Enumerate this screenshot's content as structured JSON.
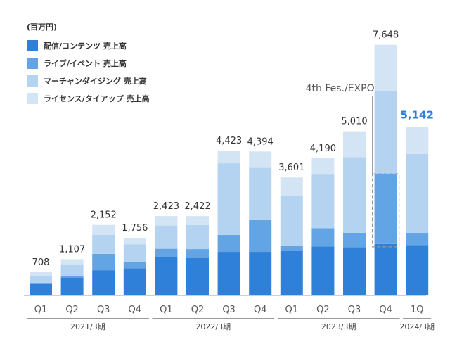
{
  "chart_data": {
    "type": "bar",
    "stacked": true,
    "unit_label": "(百万円)",
    "categories": [
      "Q1",
      "Q2",
      "Q3",
      "Q4",
      "Q1",
      "Q2",
      "Q3",
      "Q4",
      "Q1",
      "Q2",
      "Q3",
      "Q4",
      "1Q"
    ],
    "groups": [
      {
        "label": "2021/3期",
        "from": 0,
        "to": 3
      },
      {
        "label": "2022/3期",
        "from": 4,
        "to": 7
      },
      {
        "label": "2023/3期",
        "from": 8,
        "to": 11
      },
      {
        "label": "2024/3期",
        "from": 12,
        "to": 12
      }
    ],
    "series": [
      {
        "name": "配信/コンテンツ 売上高",
        "color": "#2f80d8",
        "values": [
          370,
          545,
          770,
          830,
          1160,
          1145,
          1330,
          1330,
          1360,
          1495,
          1475,
          1570,
          1540
        ]
      },
      {
        "name": "ライブ/イベント 売上高",
        "color": "#63a4e4",
        "values": [
          20,
          40,
          500,
          200,
          265,
          270,
          520,
          970,
          150,
          560,
          440,
          2140,
          370
        ]
      },
      {
        "name": "マーチャンダイジング 売上高",
        "color": "#b4d3f0",
        "values": [
          200,
          342,
          582,
          526,
          708,
          737,
          2183,
          1594,
          1531,
          1635,
          2305,
          2523,
          2405
        ]
      },
      {
        "name": "ライセンス/タイアップ 売上高",
        "color": "#d3e4f5",
        "values": [
          118,
          180,
          300,
          200,
          290,
          270,
          390,
          500,
          560,
          500,
          790,
          1415,
          827
        ]
      }
    ],
    "totals": [
      "708",
      "1,107",
      "2,152",
      "1,756",
      "2,423",
      "2,422",
      "4,423",
      "4,394",
      "3,601",
      "4,190",
      "5,010",
      "7,648",
      "5,142"
    ],
    "highlight_total_index": 12,
    "highlight_color": "#2f80d8",
    "annotation": {
      "text": "4th Fes./EXPO",
      "bar_index": 11
    },
    "ylim": [
      0,
      8500
    ],
    "grid": false
  }
}
